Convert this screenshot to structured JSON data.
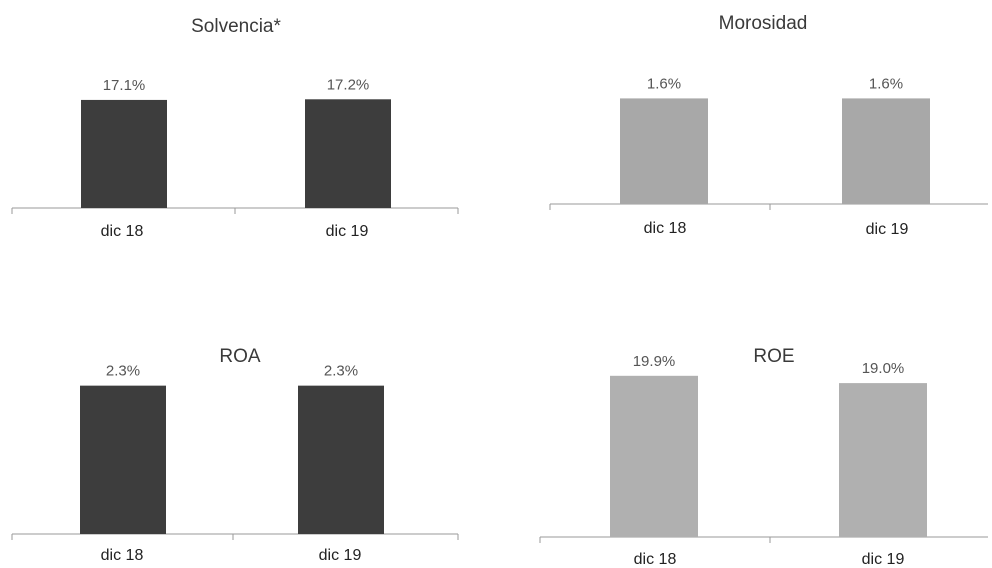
{
  "chart_data": [
    {
      "type": "bar",
      "title": "Solvencia*",
      "categories": [
        "dic 18",
        "dic 19"
      ],
      "values": [
        17.1,
        17.2
      ],
      "value_labels": [
        "17.1%",
        "17.2%"
      ],
      "unit": "%",
      "color": "#3d3d3d"
    },
    {
      "type": "bar",
      "title": "Morosidad",
      "categories": [
        "dic 18",
        "dic 19"
      ],
      "values": [
        1.6,
        1.6
      ],
      "value_labels": [
        "1.6%",
        "1.6%"
      ],
      "unit": "%",
      "color": "#a8a8a8"
    },
    {
      "type": "bar",
      "title": "ROA",
      "categories": [
        "dic 18",
        "dic 19"
      ],
      "values": [
        2.3,
        2.3
      ],
      "value_labels": [
        "2.3%",
        "2.3%"
      ],
      "unit": "%",
      "color": "#3d3d3d"
    },
    {
      "type": "bar",
      "title": "ROE",
      "categories": [
        "dic 18",
        "dic 19"
      ],
      "values": [
        19.9,
        19.0
      ],
      "value_labels": [
        "19.9%",
        "19.0%"
      ],
      "unit": "%",
      "color": "#b0b0b0"
    }
  ]
}
